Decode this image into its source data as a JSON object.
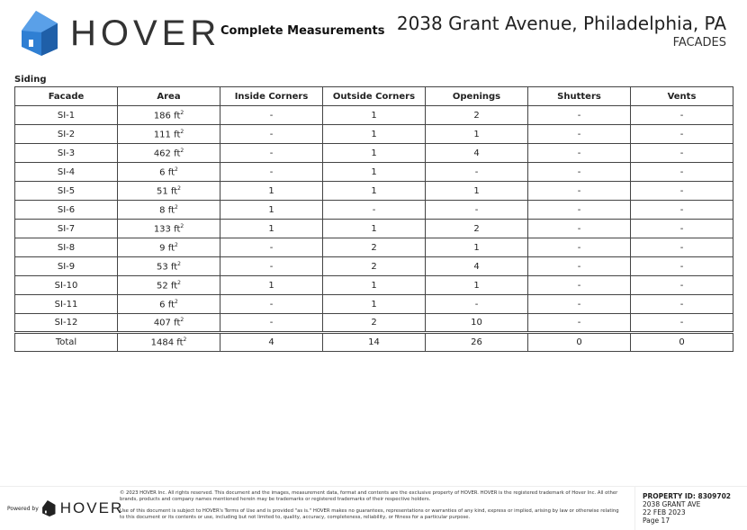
{
  "header": {
    "logo_text": "HOVER",
    "subtitle": "Complete Measurements",
    "address": "2038 Grant Avenue, Philadelphia, PA",
    "section": "FACADES",
    "brand_color": "#2f7fd3"
  },
  "table": {
    "title": "Siding",
    "columns": [
      "Facade",
      "Area",
      "Inside Corners",
      "Outside Corners",
      "Openings",
      "Shutters",
      "Vents"
    ],
    "rows": [
      [
        "SI-1",
        "186",
        "-",
        "1",
        "2",
        "-",
        "-"
      ],
      [
        "SI-2",
        "111",
        "-",
        "1",
        "1",
        "-",
        "-"
      ],
      [
        "SI-3",
        "462",
        "-",
        "1",
        "4",
        "-",
        "-"
      ],
      [
        "SI-4",
        "6",
        "-",
        "1",
        "-",
        "-",
        "-"
      ],
      [
        "SI-5",
        "51",
        "1",
        "1",
        "1",
        "-",
        "-"
      ],
      [
        "SI-6",
        "8",
        "1",
        "-",
        "-",
        "-",
        "-"
      ],
      [
        "SI-7",
        "133",
        "1",
        "1",
        "2",
        "-",
        "-"
      ],
      [
        "SI-8",
        "9",
        "-",
        "2",
        "1",
        "-",
        "-"
      ],
      [
        "SI-9",
        "53",
        "-",
        "2",
        "4",
        "-",
        "-"
      ],
      [
        "SI-10",
        "52",
        "1",
        "1",
        "1",
        "-",
        "-"
      ],
      [
        "SI-11",
        "6",
        "-",
        "1",
        "-",
        "-",
        "-"
      ],
      [
        "SI-12",
        "407",
        "-",
        "2",
        "10",
        "-",
        "-"
      ]
    ],
    "unit": "ft",
    "total": [
      "Total",
      "1484",
      "4",
      "14",
      "26",
      "0",
      "0"
    ]
  },
  "footer": {
    "powered_by": "Powered by",
    "logo_text": "HOVER",
    "legal1": "© 2023 HOVER Inc. All rights reserved. This document and the images, measurement data, format and contents are the exclusive property of HOVER. HOVER is the registered trademark of Hover Inc. All other brands, products and company names mentioned herein may be trademarks or registered trademarks of their respective holders.",
    "legal2": "Use of this document is subject to HOVER's Terms of Use and is provided \"as is.\" HOVER makes no guarantees, representations or warranties of any kind, express or implied, arising by law or otherwise relating to this document or its contents or use, including but not limited to, quality, accuracy, completeness, reliability, or fitness for a particular purpose.",
    "property_id": "PROPERTY ID: 8309702",
    "street": "2038 GRANT AVE",
    "date": "22 FEB 2023",
    "page": "Page 17"
  }
}
